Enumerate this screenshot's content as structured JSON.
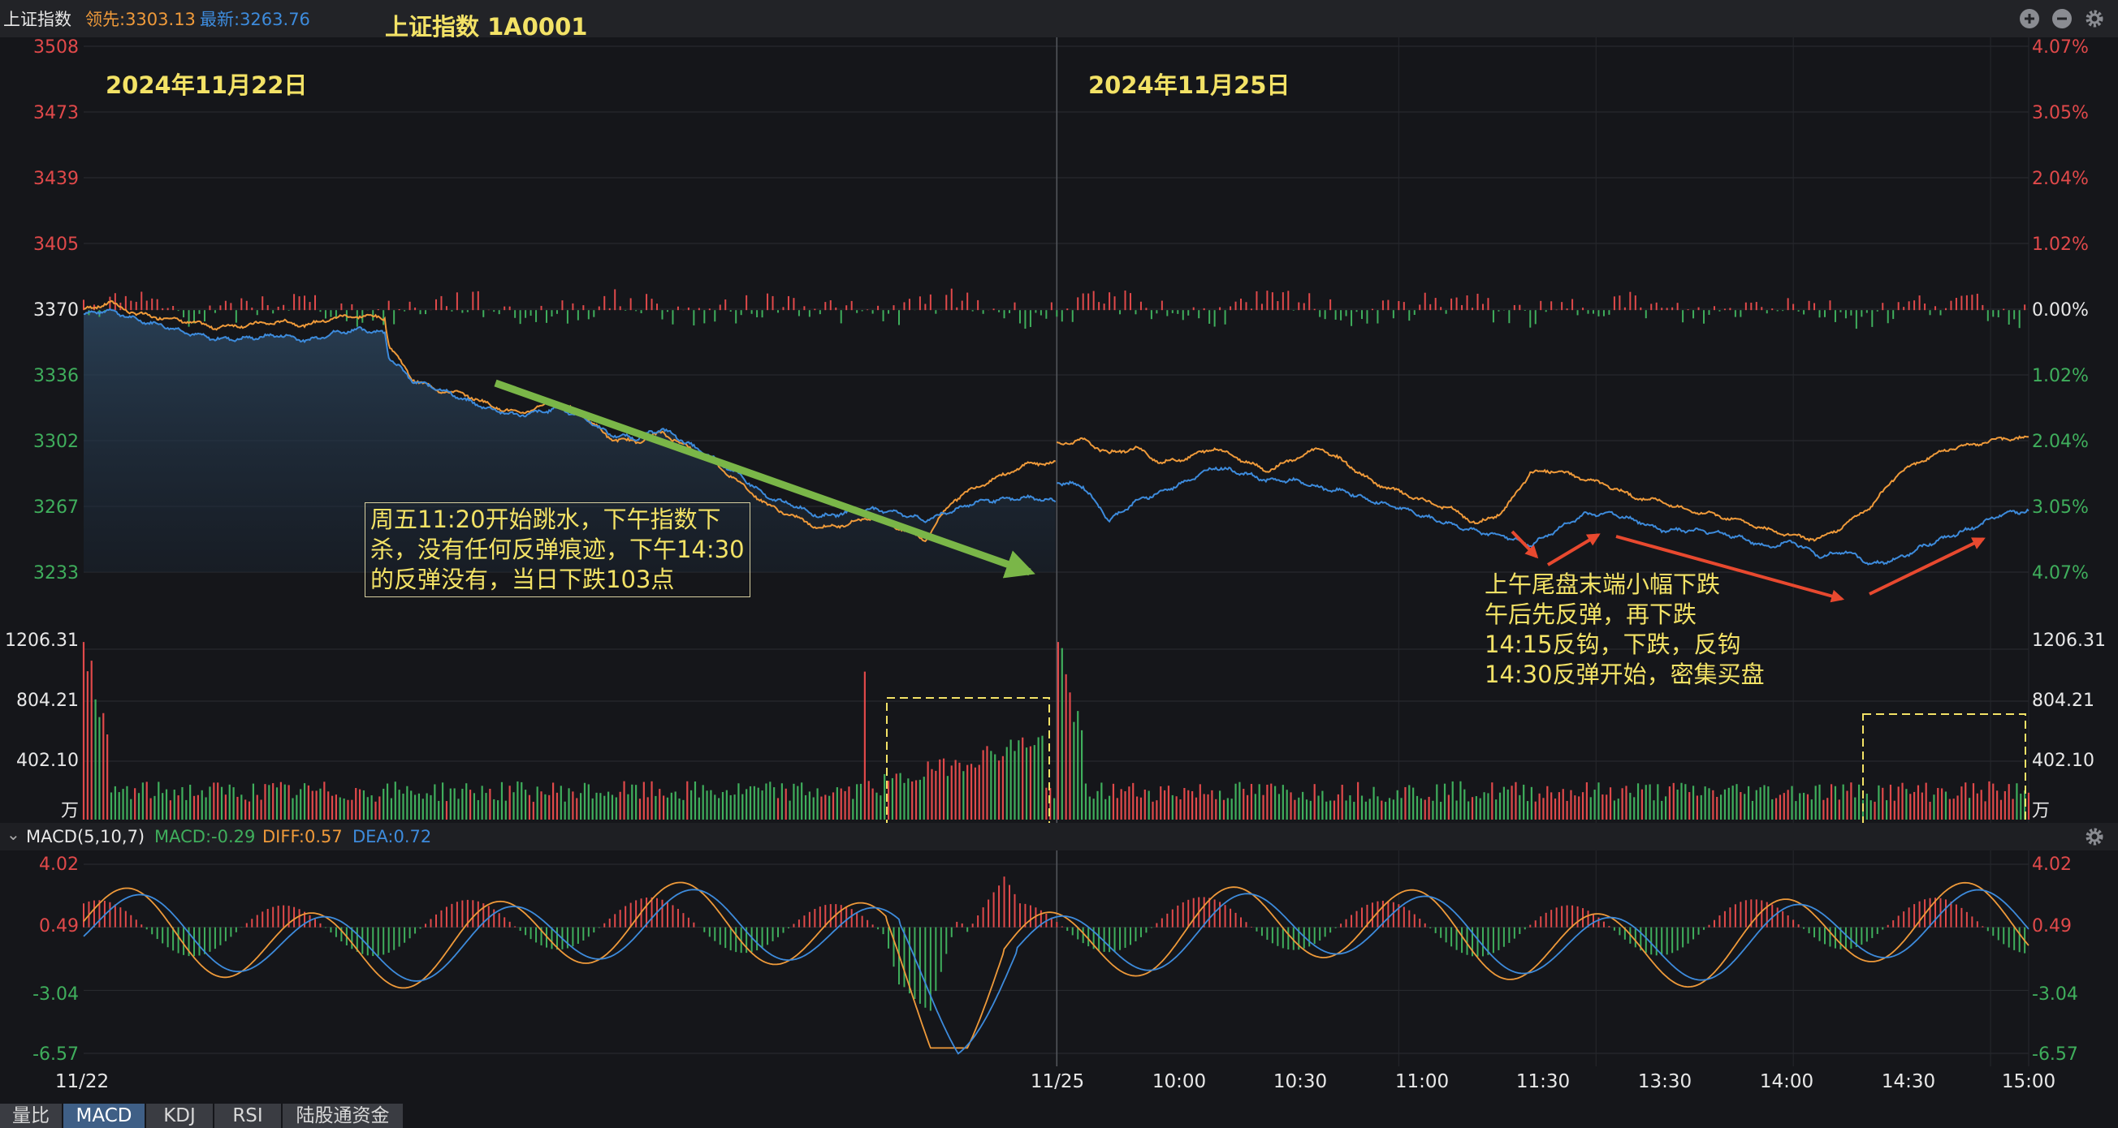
{
  "header": {
    "index_name": "上证指数",
    "lead_label": "领先:3303.13",
    "latest_label": "最新:3263.76",
    "title": "上证指数 1A0001"
  },
  "window_controls": [
    "zoom-in-icon",
    "zoom-out-icon",
    "gear-icon"
  ],
  "dates": {
    "left": "2024年11月22日",
    "right": "2024年11月25日"
  },
  "annotations": {
    "left_note": "周五11:20开始跳水，下午指数下\n杀，没有任何反弹痕迹，下午14:30\n的反弹没有，当日下跌103点",
    "right_note": "上午尾盘末端小幅下跌\n午后先反弹，再下跌\n14:15反钩，下跌，反钩\n14:30反弹开始，密集买盘"
  },
  "macd_header": {
    "collapse": "⌄",
    "name": "MACD(5,10,7)",
    "macd": "MACD:-0.29",
    "diff": "DIFF:0.57",
    "dea": "DEA:0.72"
  },
  "bottom_tabs": [
    {
      "label": "量比",
      "active": false
    },
    {
      "label": "MACD",
      "active": true
    },
    {
      "label": "KDJ",
      "active": false
    },
    {
      "label": "RSI",
      "active": false
    },
    {
      "label": "陆股通资金",
      "active": false
    }
  ],
  "colors": {
    "up": "#e0494a",
    "down": "#3fae5c",
    "price_line": "#3d8bdc",
    "lead_line": "#ef9a3a",
    "annotation": "#f3e266",
    "green_arrow": "#7ab648",
    "red_arrow": "#e8492f"
  },
  "chart_data": {
    "type": "line",
    "price_axis": {
      "left_ticks": [
        "3508",
        "3473",
        "3439",
        "3405",
        "3370",
        "3336",
        "3302",
        "3267",
        "3233"
      ],
      "right_ticks": [
        "4.07%",
        "3.05%",
        "2.04%",
        "1.02%",
        "0.00%",
        "1.02%",
        "2.04%",
        "3.05%",
        "4.07%"
      ],
      "ylim": [
        3233,
        3508
      ],
      "reference": 3370
    },
    "volume_axis": {
      "ticks": [
        "1206.31",
        "804.21",
        "402.10",
        "万"
      ],
      "ylim": [
        0,
        1206.31
      ]
    },
    "macd_axis": {
      "ticks": [
        "4.02",
        "0.49",
        "-3.04",
        "-6.57"
      ],
      "ylim": [
        -6.57,
        4.02
      ]
    },
    "time_axis": {
      "labels": [
        "11/22",
        "11/25",
        "10:00",
        "10:30",
        "11:00",
        "11:30",
        "13:30",
        "14:00",
        "14:30",
        "15:00"
      ]
    },
    "series": [
      {
        "name": "最新",
        "x": [
          0,
          20,
          40,
          60,
          80,
          100,
          120,
          150,
          170,
          190,
          210,
          229,
          232,
          250,
          270,
          290,
          310,
          330,
          350,
          360,
          380,
          400,
          420,
          440,
          460,
          480,
          500,
          520,
          540,
          560,
          580,
          600,
          620,
          640,
          660,
          680,
          700,
          720,
          739,
          740,
          760,
          780,
          800,
          820,
          840,
          860,
          880,
          900,
          920,
          940,
          960,
          980,
          1000,
          1020,
          1040,
          1060,
          1080,
          1100,
          1120,
          1140,
          1160,
          1180,
          1200,
          1220,
          1240,
          1260,
          1280,
          1300,
          1320,
          1340,
          1360,
          1380,
          1400,
          1420,
          1440,
          1460,
          1479
        ],
        "values": [
          3368,
          3370,
          3365,
          3362,
          3358,
          3355,
          3355,
          3357,
          3354,
          3358,
          3360,
          3358,
          3346,
          3333,
          3329,
          3323,
          3318,
          3315,
          3317,
          3319,
          3314,
          3305,
          3303,
          3308,
          3300,
          3292,
          3283,
          3272,
          3268,
          3262,
          3264,
          3266,
          3264,
          3260,
          3265,
          3270,
          3271,
          3272,
          3270,
          3280,
          3278,
          3260,
          3270,
          3275,
          3281,
          3288,
          3285,
          3281,
          3281,
          3277,
          3275,
          3270,
          3267,
          3262,
          3258,
          3254,
          3252,
          3247,
          3255,
          3263,
          3264,
          3260,
          3255,
          3255,
          3254,
          3251,
          3246,
          3249,
          3241,
          3244,
          3237,
          3240,
          3247,
          3252,
          3257,
          3264,
          3265
        ]
      },
      {
        "name": "领先",
        "x": [
          0,
          20,
          40,
          60,
          80,
          100,
          120,
          150,
          170,
          190,
          210,
          229,
          232,
          250,
          270,
          290,
          310,
          330,
          350,
          360,
          380,
          400,
          420,
          440,
          460,
          480,
          500,
          520,
          540,
          560,
          580,
          600,
          620,
          640,
          660,
          680,
          700,
          720,
          739,
          740,
          760,
          780,
          800,
          820,
          840,
          860,
          880,
          900,
          920,
          940,
          960,
          980,
          1000,
          1020,
          1040,
          1060,
          1080,
          1100,
          1120,
          1140,
          1160,
          1180,
          1200,
          1220,
          1240,
          1260,
          1280,
          1300,
          1320,
          1340,
          1360,
          1380,
          1400,
          1420,
          1440,
          1460,
          1479
        ],
        "values": [
          3370,
          3374,
          3368,
          3366,
          3364,
          3361,
          3362,
          3364,
          3362,
          3366,
          3367,
          3366,
          3352,
          3334,
          3328,
          3326,
          3320,
          3316,
          3320,
          3322,
          3315,
          3303,
          3301,
          3306,
          3298,
          3290,
          3279,
          3268,
          3262,
          3256,
          3258,
          3262,
          3256,
          3250,
          3270,
          3278,
          3284,
          3290,
          3290,
          3300,
          3302,
          3295,
          3298,
          3290,
          3293,
          3298,
          3292,
          3286,
          3292,
          3298,
          3290,
          3280,
          3275,
          3270,
          3266,
          3258,
          3265,
          3285,
          3286,
          3282,
          3278,
          3272,
          3270,
          3265,
          3263,
          3260,
          3255,
          3252,
          3250,
          3258,
          3268,
          3285,
          3292,
          3298,
          3300,
          3303,
          3303
        ]
      }
    ]
  }
}
